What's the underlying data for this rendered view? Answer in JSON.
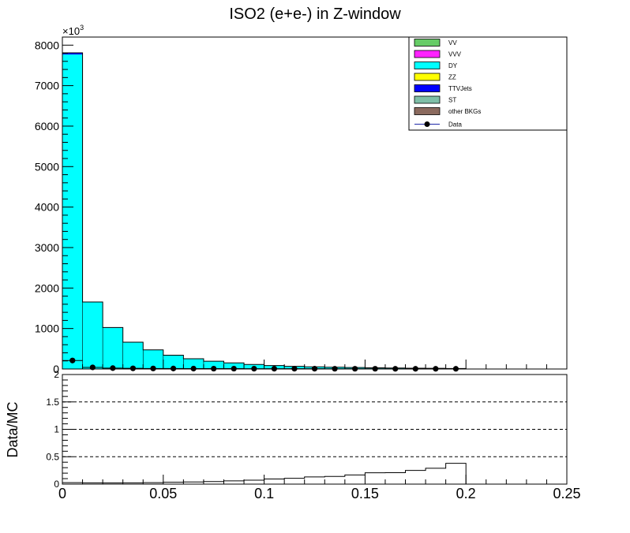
{
  "chart_data": [
    {
      "type": "bar",
      "stacked": true,
      "title": "ISO2 (e+e-) in Z-window",
      "xlabel": "",
      "ylabel": "",
      "y_multiplier_label": "×10",
      "y_multiplier_exponent": "3",
      "xlim": [
        0,
        0.25
      ],
      "ylim": [
        0,
        8200
      ],
      "bin_edges": [
        0,
        0.01,
        0.02,
        0.03,
        0.04,
        0.05,
        0.06,
        0.07,
        0.08,
        0.09,
        0.1,
        0.11,
        0.12,
        0.13,
        0.14,
        0.15,
        0.16,
        0.17,
        0.18,
        0.19,
        0.2
      ],
      "yticks": [
        0,
        1000,
        2000,
        3000,
        4000,
        5000,
        6000,
        7000,
        8000
      ],
      "legend_position": "top-right",
      "series": [
        {
          "name": "VV",
          "color": "#66cc66",
          "values": [
            0,
            0,
            0,
            0,
            0,
            0,
            0,
            0,
            0,
            0,
            0,
            0,
            0,
            0,
            0,
            0,
            0,
            0,
            0,
            0
          ]
        },
        {
          "name": "VVV",
          "color": "#ff22ff",
          "values": [
            0,
            0,
            0,
            0,
            0,
            0,
            0,
            0,
            0,
            0,
            0,
            0,
            0,
            0,
            0,
            0,
            0,
            0,
            0,
            0
          ]
        },
        {
          "name": "DY",
          "color": "#00ffff",
          "values": [
            7770,
            1650,
            1020,
            660,
            470,
            340,
            250,
            190,
            150,
            110,
            85,
            65,
            52,
            42,
            35,
            28,
            23,
            19,
            16,
            12
          ]
        },
        {
          "name": "ZZ",
          "color": "#ffff00",
          "values": [
            0,
            0,
            0,
            0,
            0,
            0,
            0,
            0,
            0,
            0,
            0,
            0,
            0,
            0,
            0,
            0,
            0,
            0,
            0,
            0
          ]
        },
        {
          "name": "TTVJets",
          "color": "#0000ff",
          "values": [
            40,
            6,
            4,
            3,
            2,
            2,
            2,
            2,
            1,
            1,
            1,
            1,
            1,
            1,
            1,
            1,
            1,
            1,
            1,
            1
          ]
        },
        {
          "name": "ST",
          "color": "#7fbfa8",
          "values": [
            0,
            0,
            0,
            0,
            0,
            0,
            0,
            0,
            0,
            0,
            0,
            0,
            0,
            0,
            0,
            0,
            0,
            0,
            0,
            0
          ]
        },
        {
          "name": "other BKGs",
          "color": "#8b6a5e",
          "values": [
            0,
            0,
            0,
            0,
            0,
            0,
            0,
            0,
            0,
            0,
            0,
            0,
            0,
            0,
            0,
            0,
            0,
            0,
            0,
            0
          ]
        }
      ],
      "data_points": {
        "name": "Data",
        "color": "#000000",
        "x": [
          0.005,
          0.015,
          0.025,
          0.035,
          0.045,
          0.055,
          0.065,
          0.075,
          0.085,
          0.095,
          0.105,
          0.115,
          0.125,
          0.135,
          0.145,
          0.155,
          0.165,
          0.175,
          0.185,
          0.195
        ],
        "y": [
          210,
          40,
          22,
          16,
          13,
          12,
          10,
          9,
          9,
          8,
          8,
          7,
          7,
          6,
          6,
          6,
          5,
          5,
          5,
          5
        ]
      }
    },
    {
      "type": "line",
      "title": "",
      "xlabel": "",
      "ylabel": "Data/MC",
      "xlim": [
        0,
        0.25
      ],
      "ylim": [
        0,
        2
      ],
      "yticks": [
        0,
        0.5,
        1,
        1.5,
        2
      ],
      "ytick_labels": [
        "0",
        "0.5",
        "1",
        "1.5",
        "2"
      ],
      "xticks": [
        0,
        0.05,
        0.1,
        0.15,
        0.2,
        0.25
      ],
      "xtick_labels": [
        "0",
        "0.05",
        "0.1",
        "0.15",
        "0.2",
        "0.25"
      ],
      "reference_lines": [
        0.5,
        1,
        1.5
      ],
      "ratio": {
        "bin_edges": [
          0,
          0.01,
          0.02,
          0.03,
          0.04,
          0.05,
          0.06,
          0.07,
          0.08,
          0.09,
          0.1,
          0.11,
          0.12,
          0.13,
          0.14,
          0.15,
          0.16,
          0.17,
          0.18,
          0.19,
          0.2
        ],
        "values": [
          0.027,
          0.024,
          0.021,
          0.024,
          0.027,
          0.035,
          0.039,
          0.047,
          0.059,
          0.072,
          0.093,
          0.106,
          0.132,
          0.14,
          0.167,
          0.207,
          0.208,
          0.25,
          0.29,
          0.38
        ]
      }
    }
  ]
}
